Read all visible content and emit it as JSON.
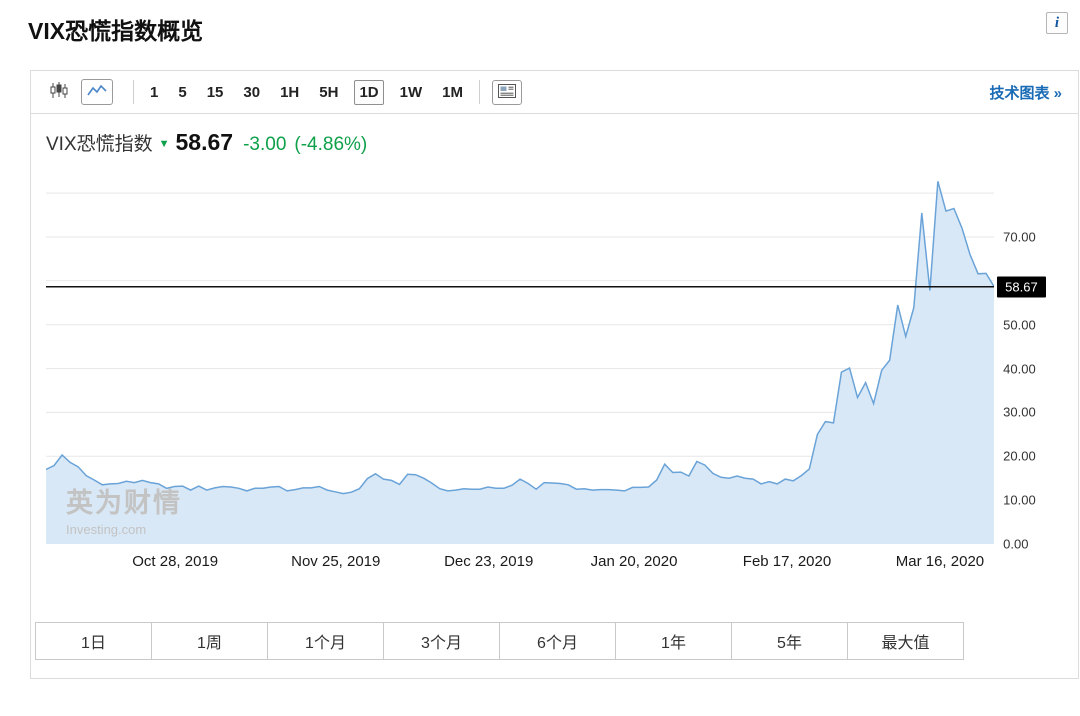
{
  "page": {
    "title": "VIX恐慌指数概览",
    "info_icon": "i"
  },
  "toolbar": {
    "intervals": [
      {
        "label": "1",
        "selected": false
      },
      {
        "label": "5",
        "selected": false
      },
      {
        "label": "15",
        "selected": false
      },
      {
        "label": "30",
        "selected": false
      },
      {
        "label": "1H",
        "selected": false
      },
      {
        "label": "5H",
        "selected": false
      },
      {
        "label": "1D",
        "selected": true
      },
      {
        "label": "1W",
        "selected": false
      },
      {
        "label": "1M",
        "selected": false
      }
    ],
    "link": "技术图表 »"
  },
  "quote": {
    "name": "VIX恐慌指数",
    "last": "58.67",
    "change": "-3.00",
    "change_pct": "(-4.86%)",
    "direction": "down",
    "color": "#0fa04a"
  },
  "icons": {
    "down_arrow": "▼"
  },
  "watermark": {
    "cn": "英为财情",
    "en": "Investing.com"
  },
  "range_buttons": [
    "1日",
    "1周",
    "1个月",
    "3个月",
    "6个月",
    "1年",
    "5年",
    "最大值"
  ],
  "chart_data": {
    "type": "area",
    "title": "VIX恐慌指数",
    "last_price": 58.67,
    "ylim": [
      0,
      85.5
    ],
    "grid": true,
    "legend": false,
    "y_ticks": [
      0,
      10,
      20,
      30,
      40,
      50,
      70
    ],
    "gridlines": [
      10,
      20,
      30,
      40,
      50,
      60,
      70,
      80
    ],
    "x_ticks": [
      {
        "label": "Oct 28, 2019",
        "t": 0.136
      },
      {
        "label": "Nov 25, 2019",
        "t": 0.305
      },
      {
        "label": "Dec 23, 2019",
        "t": 0.466
      },
      {
        "label": "Jan 20, 2020",
        "t": 0.619
      },
      {
        "label": "Feb 17, 2020",
        "t": 0.78
      },
      {
        "label": "Mar 16, 2020",
        "t": 0.941
      }
    ],
    "colors": {
      "line": "#6aa3d8",
      "fill": "#d9e8f6",
      "price_line": "#111111",
      "grid": "#e7e7e7"
    },
    "values": [
      17.0,
      17.9,
      20.3,
      18.6,
      17.6,
      15.6,
      14.6,
      13.5,
      13.7,
      13.8,
      14.3,
      14.0,
      14.5,
      14.0,
      13.7,
      12.7,
      13.1,
      13.2,
      12.3,
      13.2,
      12.3,
      12.8,
      13.1,
      13.0,
      12.7,
      12.1,
      12.7,
      12.7,
      13.0,
      13.1,
      12.1,
      12.4,
      12.8,
      12.8,
      13.1,
      12.3,
      11.9,
      11.5,
      11.8,
      12.6,
      14.9,
      16.0,
      14.8,
      14.5,
      13.6,
      15.9,
      15.8,
      15.0,
      13.9,
      12.6,
      12.1,
      12.3,
      12.6,
      12.5,
      12.5,
      13.0,
      12.7,
      12.7,
      13.4,
      14.8,
      13.8,
      12.5,
      14.0,
      13.9,
      13.8,
      13.5,
      12.5,
      12.6,
      12.3,
      12.4,
      12.4,
      12.3,
      12.1,
      12.9,
      12.9,
      13.0,
      14.6,
      18.2,
      16.3,
      16.4,
      15.5,
      18.8,
      18.0,
      16.1,
      15.2,
      15.0,
      15.5,
      15.0,
      14.8,
      13.7,
      14.2,
      13.7,
      14.8,
      14.4,
      15.6,
      17.1,
      25.0,
      27.9,
      27.6,
      39.2,
      40.1,
      33.4,
      36.8,
      32.0,
      39.6,
      41.9,
      54.5,
      47.3,
      53.9,
      75.5,
      57.8,
      82.7,
      75.9,
      76.5,
      72.0,
      66.0,
      61.6,
      61.7,
      58.67
    ]
  }
}
